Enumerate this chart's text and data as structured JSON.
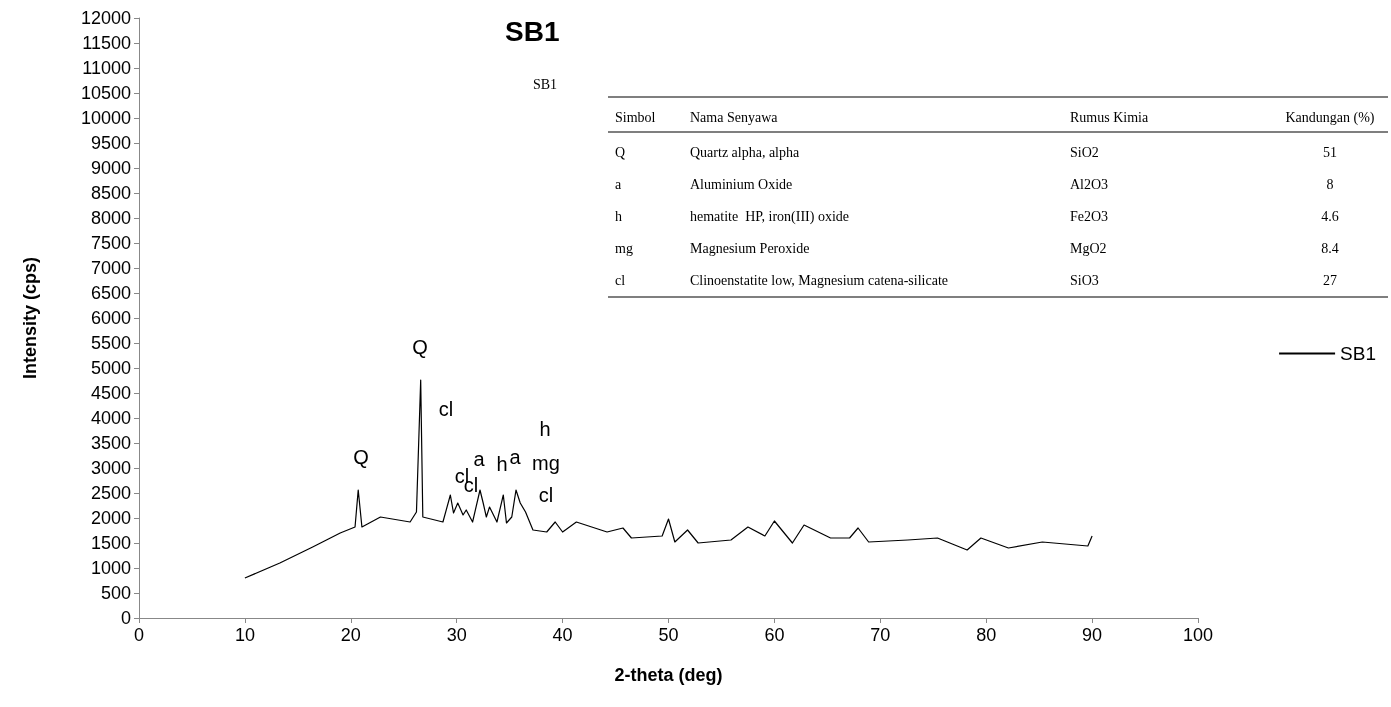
{
  "chart_data": {
    "type": "line",
    "title": "SB1",
    "xlabel": "2-theta (deg)",
    "ylabel": "Intensity (cps)",
    "xlim": [
      0,
      100
    ],
    "xticks": [
      0,
      10,
      20,
      30,
      40,
      50,
      60,
      70,
      80,
      90,
      100
    ],
    "ylim": [
      0,
      12000
    ],
    "yticks": [
      0,
      500,
      1000,
      1500,
      2000,
      2500,
      3000,
      3500,
      4000,
      4500,
      5000,
      5500,
      6000,
      6500,
      7000,
      7500,
      8000,
      8500,
      9000,
      9500,
      10000,
      10500,
      11000,
      11500,
      12000
    ],
    "grid": false,
    "legend": "right",
    "marker": "none",
    "line_style": "solid",
    "series": [
      {
        "name": "SB1",
        "color": "#000000",
        "x": [
          10.0,
          13.3,
          16.4,
          19.0,
          20.4,
          20.7,
          21.05,
          22.8,
          25.6,
          26.2,
          26.6,
          26.8,
          28.7,
          29.4,
          29.7,
          30.1,
          30.6,
          30.9,
          31.5,
          32.2,
          32.5,
          32.8,
          33.1,
          33.8,
          34.4,
          34.7,
          35.2,
          35.6,
          36.0,
          36.5,
          37.2,
          38.5,
          39.3,
          40.0,
          41.3,
          44.2,
          45.7,
          46.5,
          49.4,
          50.0,
          50.6,
          51.8,
          52.8,
          55.9,
          57.5,
          59.1,
          60.0,
          61.7,
          62.8,
          65.3,
          67.1,
          67.9,
          68.9,
          72.6,
          75.4,
          78.2,
          79.5,
          82.1,
          85.3,
          89.6,
          90.0
        ],
        "values": [
          800,
          1100,
          1420,
          1700,
          1820,
          2560,
          1820,
          2020,
          1920,
          2120,
          4760,
          2020,
          1920,
          2460,
          2100,
          2300,
          2060,
          2160,
          1920,
          2560,
          2300,
          2020,
          2220,
          1920,
          2460,
          1900,
          2020,
          2560,
          2300,
          2120,
          1760,
          1720,
          1920,
          1720,
          1920,
          1720,
          1800,
          1600,
          1640,
          1980,
          1520,
          1760,
          1500,
          1560,
          1820,
          1640,
          1940,
          1500,
          1860,
          1600,
          1600,
          1800,
          1520,
          1560,
          1600,
          1360,
          1600,
          1400,
          1520,
          1440,
          1640
        ]
      }
    ],
    "annotations": [
      "Q",
      "Q",
      "cl",
      "cl",
      "cl",
      "a",
      "h",
      "a",
      "h",
      "mg",
      "cl",
      "SB1",
      "Simbol",
      "Nama Senyawa",
      "Rumus Kimia",
      "Kandungan (%)",
      "Q",
      "Quartz alpha, alpha",
      "SiO2",
      "51",
      "a",
      "Aluminium Oxide",
      "Al2O3",
      "8",
      "h",
      "hematite  HP, iron(III) oxide",
      "Fe2O3",
      "4.6",
      "mg",
      "Magnesium Peroxide",
      "MgO2",
      "8.4",
      "cl",
      "Clinoenstatite low, Magnesium catena-silicate",
      "SiO3",
      "27"
    ]
  }
}
